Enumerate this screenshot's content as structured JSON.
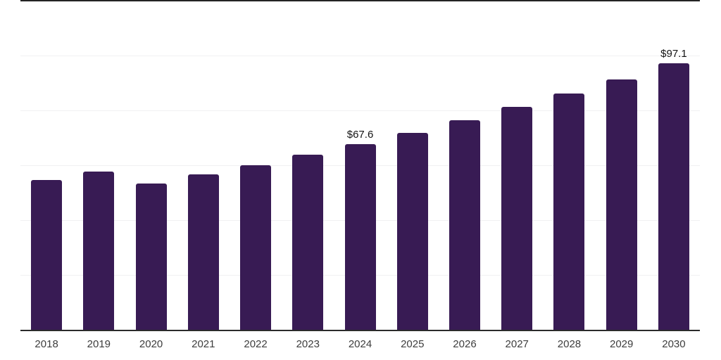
{
  "chart_data": {
    "type": "bar",
    "title": "",
    "xlabel": "",
    "ylabel": "",
    "categories": [
      "2018",
      "2019",
      "2020",
      "2021",
      "2022",
      "2023",
      "2024",
      "2025",
      "2026",
      "2027",
      "2028",
      "2029",
      "2030"
    ],
    "values": [
      54.6,
      57.6,
      53.3,
      56.6,
      59.9,
      63.8,
      67.6,
      71.7,
      76.3,
      81.2,
      86.1,
      91.4,
      97.1
    ],
    "data_labels": {
      "2024": "$67.6",
      "2030": "$97.1"
    },
    "ylim": [
      0,
      120
    ],
    "gridline_values": [
      20,
      40,
      60,
      80,
      100,
      120
    ],
    "grid": "horizontal-only",
    "legend": "none",
    "y_axis_labels_visible": false,
    "colors": {
      "bar": "#381b54",
      "axis_line": "#2b2b2b",
      "top_border": "#242424",
      "gridline": "#f0f0f2",
      "tick_label": "#3d3d3d",
      "data_label": "#141414",
      "background": "#ffffff"
    }
  }
}
